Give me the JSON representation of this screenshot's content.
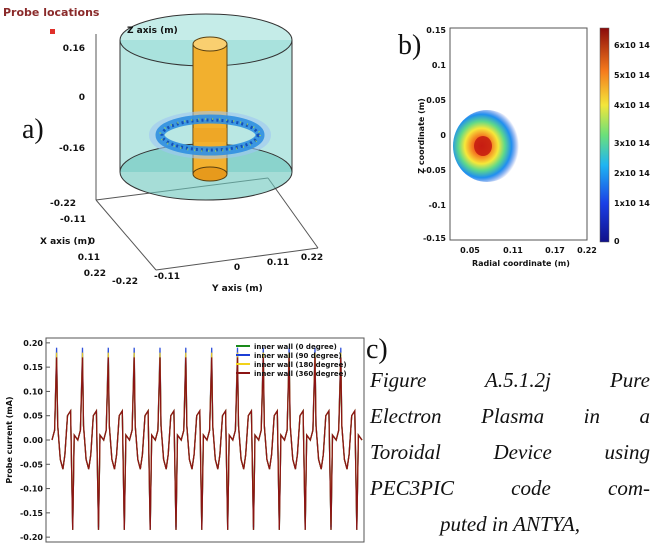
{
  "panel_a": {
    "title": "Probe locations",
    "label": "a)",
    "z_title": "Z axis (m)",
    "z_ticks": [
      "0.16",
      "0",
      "-0.16"
    ],
    "x_title": "X axis (m)",
    "x_ticks": [
      "-0.22",
      "-0.11",
      "0",
      "0.11",
      "0.22"
    ],
    "y_title": "Y axis (m)",
    "y_ticks": [
      "-0.22",
      "-0.11",
      "0",
      "0.11",
      "0.22"
    ],
    "colors": {
      "outer": "#6ccfc6",
      "inner": "#f2b02e",
      "plasma": "#2f8fe0"
    }
  },
  "panel_b": {
    "label": "b)",
    "ylabel": "Z coordinate (m)",
    "xlabel": "Radial coordinate (m)",
    "yticks": [
      "0.15",
      "0.1",
      "0.05",
      "0",
      "-0.05",
      "-0.1",
      "-0.15"
    ],
    "xticks": [
      "0.05",
      "0.11",
      "0.17",
      "0.22"
    ],
    "colorbar_ticks": [
      "6x10 14",
      "5x10 14",
      "4x10 14",
      "3x10 14",
      "2x10 14",
      "1x10 14",
      "0"
    ]
  },
  "panel_c": {
    "label": "c)"
  },
  "chart_data": {
    "type": "line",
    "ylabel": "Probe current (mA)",
    "yticks": [
      "0.20",
      "0.15",
      "0.10",
      "0.05",
      "0.00",
      "-0.05",
      "-0.10",
      "-0.15",
      "-0.20"
    ],
    "ylim": [
      -0.21,
      0.21
    ],
    "legend_position": "top-right",
    "num_cycles": 12,
    "series": [
      {
        "name": "inner wall (0 degree)",
        "color": "#1a8a1a",
        "peak": 0.17,
        "trough": -0.185
      },
      {
        "name": "inner wall (90 degree)",
        "color": "#1c3fd6",
        "peak": 0.19,
        "trough": -0.18
      },
      {
        "name": "inner wall (180 degree)",
        "color": "#f2d21a",
        "peak": 0.18,
        "trough": -0.175
      },
      {
        "name": "inner wall (360 degree)",
        "color": "#8b1414",
        "peak": 0.17,
        "trough": -0.185
      }
    ]
  },
  "caption": {
    "lines": [
      "Figure A.5.1.2j Pure",
      "Electron Plasma in a",
      "Toroidal Device using",
      "PEC3PIC code com-",
      "puted in ANTYA,"
    ]
  }
}
